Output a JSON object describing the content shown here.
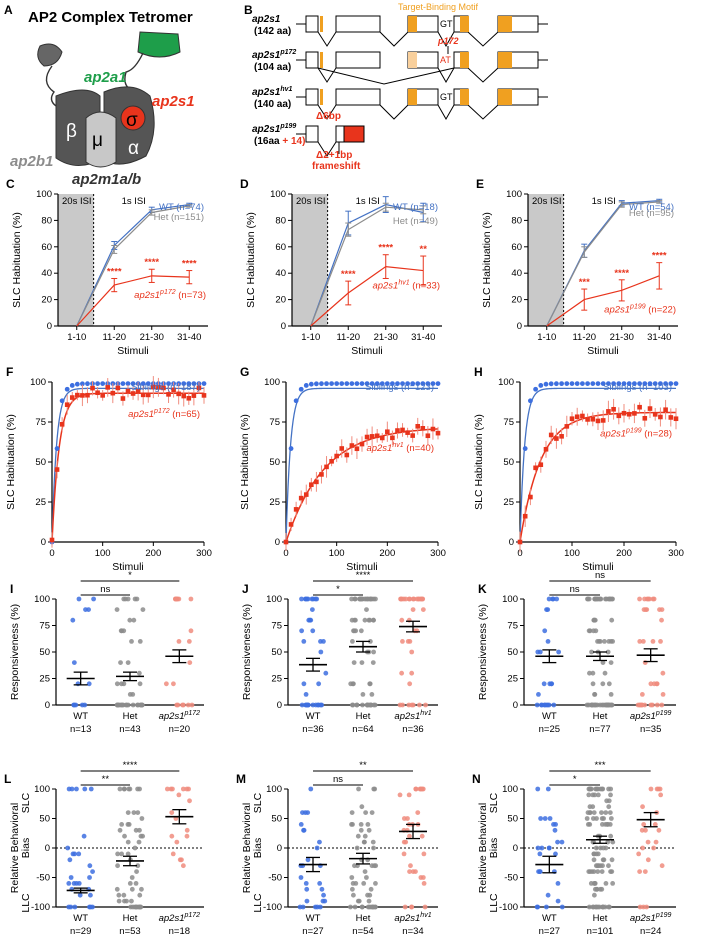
{
  "colors": {
    "wt": "#4472C4",
    "wt_dot": "#3D6FE0",
    "het": "#8C8C8C",
    "mut": "#E8341C",
    "mut_light": "#F08C7E",
    "motif": "#F0A020",
    "green": "#1E9E4A",
    "dark": "#555555",
    "light": "#C8C8C8"
  },
  "panelA": {
    "letter": "A",
    "title": "AP2 Complex Tetromer",
    "ap2a1": "ap2a1",
    "ap2s1": "ap2s1",
    "ap2b1": "ap2b1",
    "ap2m1": "ap2m1a/b",
    "beta": "β",
    "mu": "μ",
    "sigma": "σ",
    "alpha": "α"
  },
  "panelB": {
    "letter": "B",
    "motif": "Target-Binding Motif",
    "genes": [
      {
        "name": "ap2s1",
        "sup": "",
        "aa": "(142 aa)"
      },
      {
        "name": "ap2s1",
        "sup": "p172",
        "aa": "(104 aa)"
      },
      {
        "name": "ap2s1",
        "sup": "hv1",
        "aa": "(140 aa)"
      },
      {
        "name": "ap2s1",
        "sup": "p199",
        "aa": "(16aa ",
        "aa_extra": "+ 14)"
      }
    ],
    "gt": "GT",
    "at": "AT",
    "p172": "p172",
    "d6": "Δ6bp",
    "d2": "Δ2+1bp",
    "frameshift": "frameshift"
  },
  "chart_data": [
    {
      "panel": "C",
      "type": "line",
      "ylabel": "SLC Habituation (%)",
      "xlabel": "Stimuli",
      "shade": "20s ISI",
      "isi": "1s ISI",
      "categories": [
        "1-10",
        "11-20",
        "21-30",
        "31-40"
      ],
      "ylim": [
        0,
        100
      ],
      "series": [
        {
          "name": "WT (n=74)",
          "values": [
            0,
            61,
            88,
            92
          ],
          "err": [
            0,
            3,
            2,
            1
          ]
        },
        {
          "name": "Het (n=151)",
          "values": [
            0,
            58,
            86,
            91
          ],
          "err": [
            0,
            3,
            2,
            1
          ]
        },
        {
          "name": "ap2s1 p172 (n=73)",
          "values": [
            0,
            31,
            38,
            37
          ],
          "err": [
            0,
            5,
            5,
            5
          ]
        }
      ],
      "sig": [
        "****",
        "****",
        "****"
      ]
    },
    {
      "panel": "D",
      "type": "line",
      "ylabel": "SLC Habituation (%)",
      "xlabel": "Stimuli",
      "shade": "20s ISI",
      "isi": "1s ISI",
      "categories": [
        "1-10",
        "11-20",
        "21-30",
        "31-40"
      ],
      "ylim": [
        0,
        100
      ],
      "series": [
        {
          "name": "WT (n=18)",
          "values": [
            0,
            78,
            92,
            86
          ],
          "err": [
            0,
            9,
            6,
            7
          ]
        },
        {
          "name": "Het (n=49)",
          "values": [
            0,
            73,
            90,
            88
          ],
          "err": [
            0,
            5,
            3,
            3
          ]
        },
        {
          "name": "ap2s1 hv1 (n=33)",
          "values": [
            0,
            25,
            45,
            42
          ],
          "err": [
            0,
            9,
            9,
            11
          ]
        }
      ],
      "sig": [
        "****",
        "****",
        "**"
      ]
    },
    {
      "panel": "E",
      "type": "line",
      "ylabel": "SLC Habituation (%)",
      "xlabel": "Stimuli",
      "shade": "20s ISI",
      "isi": "1s ISI",
      "categories": [
        "1-10",
        "11-20",
        "21-30",
        "31-40"
      ],
      "ylim": [
        0,
        100
      ],
      "series": [
        {
          "name": "WT (n=54)",
          "values": [
            0,
            57,
            93,
            95
          ],
          "err": [
            0,
            5,
            2,
            1
          ]
        },
        {
          "name": "Het (n=95)",
          "values": [
            0,
            56,
            92,
            94
          ],
          "err": [
            0,
            4,
            2,
            1
          ]
        },
        {
          "name": "ap2s1 p199 (n=22)",
          "values": [
            0,
            20,
            27,
            38
          ],
          "err": [
            0,
            8,
            8,
            10
          ]
        }
      ],
      "sig": [
        "***",
        "****",
        "****"
      ]
    },
    {
      "panel": "F",
      "type": "scatter",
      "ylabel": "SLC Habituation (%)",
      "xlabel": "Stimuli",
      "xlim": [
        0,
        300
      ],
      "ylim": [
        0,
        100
      ],
      "siblings": "Siblings (n=187)",
      "mutant": "ap2s1 p172 (n=65)",
      "sib_end": 99,
      "mut_end": 93,
      "mut_rate": 14
    },
    {
      "panel": "G",
      "type": "scatter",
      "ylabel": "SLC Habituation (%)",
      "xlabel": "Stimuli",
      "xlim": [
        0,
        300
      ],
      "ylim": [
        0,
        100
      ],
      "siblings": "Siblings (n=123)",
      "mutant": "ap2s1 hv1 (n=40)",
      "sib_end": 99,
      "mut_end": 72,
      "mut_rate": 75
    },
    {
      "panel": "H",
      "type": "scatter",
      "ylabel": "SLC Habituation (%)",
      "xlabel": "Stimuli",
      "xlim": [
        0,
        300
      ],
      "ylim": [
        0,
        100
      ],
      "siblings": "Siblings (n=103)",
      "mutant": "ap2s1 p199 (n=28)",
      "sib_end": 99,
      "mut_end": 81,
      "mut_rate": 40
    },
    {
      "panel": "I",
      "type": "scatter",
      "ylabel": "Responsiveness (%)",
      "ylim": [
        0,
        100
      ],
      "groups": [
        {
          "name": "WT",
          "n": "n=13",
          "mean": 25,
          "sem": 6
        },
        {
          "name": "Het",
          "n": "n=43",
          "mean": 27,
          "sem": 4
        },
        {
          "name": "ap2s1",
          "sup": "p172",
          "n": "n=20",
          "mean": 46,
          "sem": 6
        }
      ],
      "brackets": [
        {
          "a": 0,
          "b": 1,
          "label": "ns"
        },
        {
          "a": 0,
          "b": 2,
          "label": "*"
        }
      ]
    },
    {
      "panel": "J",
      "type": "scatter",
      "ylabel": "Responsiveness (%)",
      "ylim": [
        0,
        100
      ],
      "groups": [
        {
          "name": "WT",
          "n": "n=36",
          "mean": 38,
          "sem": 6
        },
        {
          "name": "Het",
          "n": "n=64",
          "mean": 55,
          "sem": 5
        },
        {
          "name": "ap2s1",
          "sup": "hv1",
          "n": "n=36",
          "mean": 74,
          "sem": 5
        }
      ],
      "brackets": [
        {
          "a": 0,
          "b": 1,
          "label": "*"
        },
        {
          "a": 0,
          "b": 2,
          "label": "****"
        }
      ]
    },
    {
      "panel": "K",
      "type": "scatter",
      "ylabel": "Responsiveness (%)",
      "ylim": [
        0,
        100
      ],
      "groups": [
        {
          "name": "WT",
          "n": "n=25",
          "mean": 46,
          "sem": 6
        },
        {
          "name": "Het",
          "n": "n=77",
          "mean": 46,
          "sem": 4
        },
        {
          "name": "ap2s1",
          "sup": "p199",
          "n": "n=35",
          "mean": 47,
          "sem": 6
        }
      ],
      "brackets": [
        {
          "a": 0,
          "b": 1,
          "label": "ns"
        },
        {
          "a": 0,
          "b": 2,
          "label": "ns"
        }
      ]
    },
    {
      "panel": "L",
      "type": "scatter",
      "ylabel": "Relative Behavioral Bias",
      "slc": "SLC",
      "llc": "LLC",
      "ylim": [
        -100,
        100
      ],
      "groups": [
        {
          "name": "WT",
          "n": "n=29",
          "mean": -72,
          "sem": 4
        },
        {
          "name": "Het",
          "n": "n=53",
          "mean": -22,
          "sem": 8
        },
        {
          "name": "ap2s1",
          "sup": "p172",
          "n": "n=18",
          "mean": 53,
          "sem": 12
        }
      ],
      "brackets": [
        {
          "a": 0,
          "b": 1,
          "label": "**"
        },
        {
          "a": 0,
          "b": 2,
          "label": "****"
        }
      ]
    },
    {
      "panel": "M",
      "type": "scatter",
      "ylabel": "Relative Behavioral Bias",
      "slc": "SLC",
      "llc": "LLC",
      "ylim": [
        -100,
        100
      ],
      "groups": [
        {
          "name": "WT",
          "n": "n=27",
          "mean": -28,
          "sem": 12
        },
        {
          "name": "Het",
          "n": "n=54",
          "mean": -18,
          "sem": 9
        },
        {
          "name": "ap2s1",
          "sup": "hv1",
          "n": "n=34",
          "mean": 28,
          "sem": 12
        }
      ],
      "brackets": [
        {
          "a": 0,
          "b": 1,
          "label": "ns"
        },
        {
          "a": 0,
          "b": 2,
          "label": "**"
        }
      ]
    },
    {
      "panel": "N",
      "type": "scatter",
      "ylabel": "Relative Behavioral Bias",
      "slc": "SLC",
      "llc": "LLC",
      "ylim": [
        -100,
        100
      ],
      "groups": [
        {
          "name": "WT",
          "n": "n=27",
          "mean": -28,
          "sem": 14
        },
        {
          "name": "Het",
          "n": "n=101",
          "mean": 14,
          "sem": 6
        },
        {
          "name": "ap2s1",
          "sup": "p199",
          "n": "n=24",
          "mean": 48,
          "sem": 12
        }
      ],
      "brackets": [
        {
          "a": 0,
          "b": 1,
          "label": "*"
        },
        {
          "a": 0,
          "b": 2,
          "label": "***"
        }
      ]
    }
  ]
}
